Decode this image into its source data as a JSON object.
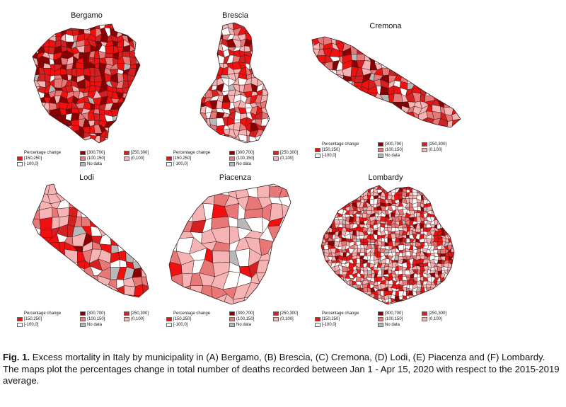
{
  "panels": [
    {
      "title": "Bergamo"
    },
    {
      "title": "Brescia"
    },
    {
      "title": "Cremona"
    },
    {
      "title": "Lodi"
    },
    {
      "title": "Piacenza"
    },
    {
      "title": "Lombardy"
    }
  ],
  "legend": {
    "title": "Percentage change",
    "classes": [
      {
        "label": "[300,700]",
        "color": "#8b0000"
      },
      {
        "label": "[250,300]",
        "color": "#d42020"
      },
      {
        "label": "[150,250]",
        "color": "#f01010"
      },
      {
        "label": "(100,150]",
        "color": "#e87878"
      },
      {
        "label": "(0,100]",
        "color": "#f5b3b3"
      },
      {
        "label": "[-100,0]",
        "color": "#ffffff"
      },
      {
        "label": "No data",
        "color": "#b8b8b8"
      }
    ]
  },
  "caption": {
    "label": "Fig. 1.",
    "text": " Excess mortality in Italy by municipality in (A) Bergamo, (B) Brescia, (C)  Cremona, (D) Lodi, (E) Piacenza and (F) Lombardy. The maps plot the percentages change in total number of deaths recorded between Jan 1 - Apr 15, 2020 with respect to the 2015-2019 average."
  }
}
